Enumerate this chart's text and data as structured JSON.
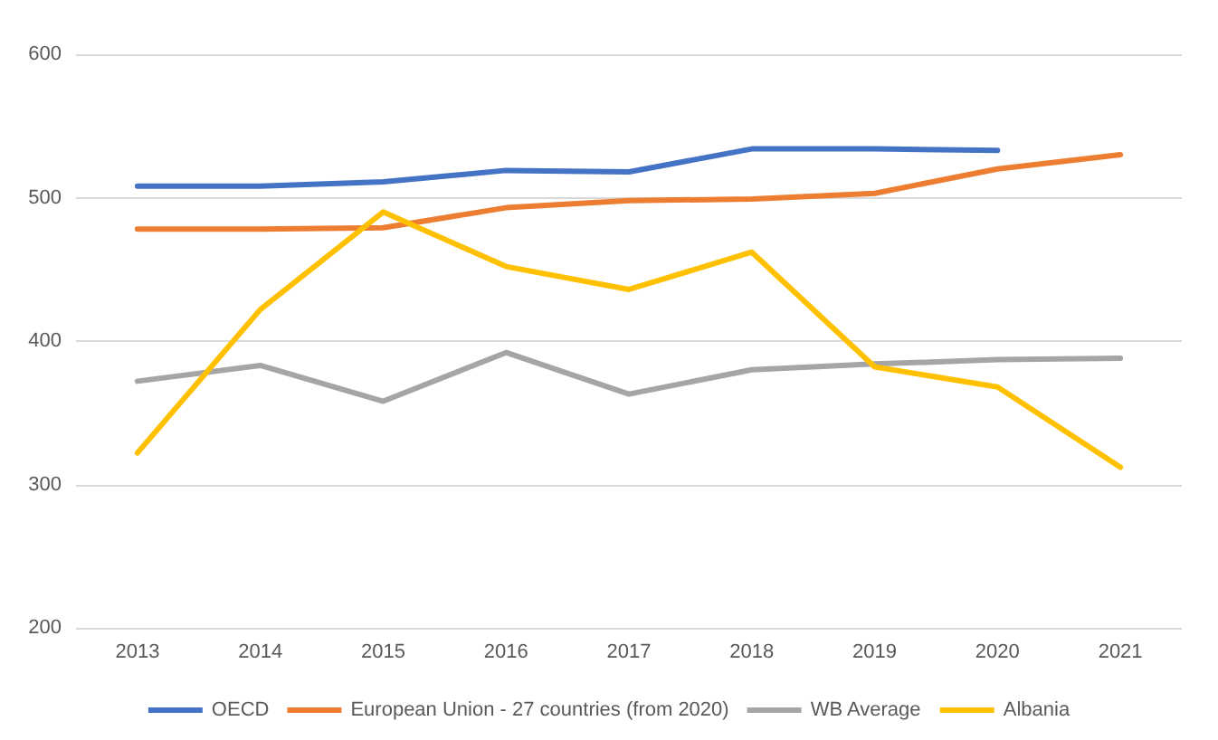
{
  "chart_data": {
    "type": "line",
    "categories": [
      "2013",
      "2014",
      "2015",
      "2016",
      "2017",
      "2018",
      "2019",
      "2020",
      "2021"
    ],
    "series": [
      {
        "name": "OECD",
        "color": "#4472c4",
        "values": [
          508,
          508,
          511,
          519,
          518,
          534,
          534,
          533,
          null
        ]
      },
      {
        "name": "European Union - 27 countries (from 2020)",
        "color": "#ed7d31",
        "values": [
          478,
          478,
          479,
          493,
          498,
          499,
          503,
          520,
          530
        ]
      },
      {
        "name": "WB Average",
        "color": "#a5a5a5",
        "values": [
          372,
          383,
          358,
          392,
          363,
          380,
          384,
          387,
          388
        ]
      },
      {
        "name": "Albania",
        "color": "#ffc000",
        "values": [
          322,
          422,
          490,
          452,
          436,
          462,
          382,
          368,
          312
        ]
      }
    ],
    "ylim": [
      200,
      600
    ],
    "yticks": [
      200,
      300,
      400,
      500,
      600
    ],
    "grid": "y",
    "legend": "bottom",
    "marker": "none",
    "line_style": "solid"
  }
}
